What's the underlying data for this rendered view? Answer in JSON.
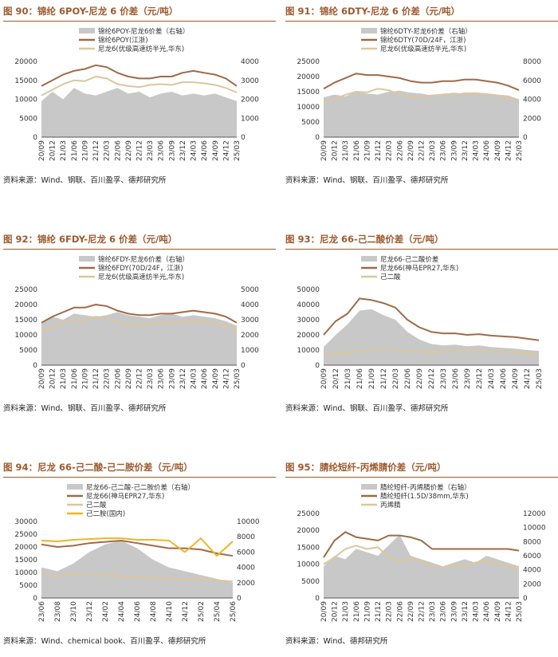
{
  "colors": {
    "title": "#9c5a2e",
    "area": "#c8c8c8",
    "line1": "#9e6b47",
    "line2": "#dcc79b",
    "line3": "#f0b428",
    "axis": "#555555"
  },
  "chart_data": [
    {
      "id": "c90",
      "type": "area+line",
      "title": "图 90：锦纶 6POY-尼龙 6 价差（元/吨）",
      "source": "资料来源：Wind、钢联、百川盈孚、德邦研究所",
      "categories": [
        "20/09",
        "20/12",
        "21/03",
        "21/06",
        "21/09",
        "21/12",
        "22/03",
        "22/06",
        "22/09",
        "22/12",
        "23/03",
        "23/06",
        "23/09",
        "23/12",
        "24/03",
        "24/06",
        "24/09",
        "24/12",
        "25/03"
      ],
      "ylim": [
        0,
        20000
      ],
      "yticks": [
        0,
        5000,
        10000,
        15000,
        20000
      ],
      "y2lim": [
        0,
        4000
      ],
      "y2ticks": [
        0,
        1000,
        2000,
        3000,
        4000
      ],
      "series": [
        {
          "name": "锦纶6POY-尼龙6价差（右轴）",
          "kind": "area",
          "axis": "right",
          "values": [
            1900,
            2400,
            2000,
            2600,
            2300,
            2200,
            2400,
            2600,
            2300,
            2400,
            2100,
            2300,
            2400,
            2200,
            2300,
            2200,
            2300,
            2100,
            1900
          ]
        },
        {
          "name": "锦纶6POY(江浙)",
          "kind": "line",
          "axis": "left",
          "values": [
            13500,
            15000,
            16500,
            17500,
            18000,
            19000,
            18500,
            17000,
            16000,
            15500,
            15500,
            16000,
            16000,
            17000,
            17500,
            17000,
            16500,
            15500,
            13500
          ]
        },
        {
          "name": "尼龙6(优级高速纺半光,华东)",
          "kind": "line",
          "axis": "left",
          "values": [
            11000,
            12500,
            14000,
            15000,
            14800,
            16000,
            15500,
            14000,
            13500,
            13200,
            13800,
            14000,
            13800,
            14500,
            14500,
            14200,
            13800,
            13000,
            11800
          ]
        }
      ]
    },
    {
      "id": "c91",
      "type": "area+line",
      "title": "图 91：锦纶 6DTY-尼龙 6 价差（元/吨）",
      "source": "资料来源：Wind、钢联、百川盈孚、德邦研究所",
      "categories": [
        "20/09",
        "20/12",
        "21/03",
        "21/06",
        "21/09",
        "21/12",
        "22/03",
        "22/06",
        "22/09",
        "22/12",
        "23/03",
        "23/06",
        "23/09",
        "23/12",
        "24/03",
        "24/06",
        "24/09",
        "24/12",
        "25/03"
      ],
      "ylim": [
        0,
        25000
      ],
      "yticks": [
        0,
        5000,
        10000,
        15000,
        20000,
        25000
      ],
      "y2lim": [
        0,
        8000
      ],
      "y2ticks": [
        0,
        2000,
        4000,
        6000,
        8000
      ],
      "series": [
        {
          "name": "锦纶6DTY-尼龙6价差（右轴）",
          "kind": "area",
          "axis": "right",
          "values": [
            4200,
            4500,
            4300,
            4800,
            4600,
            4500,
            4800,
            4900,
            4700,
            4600,
            4400,
            4600,
            4700,
            4600,
            4700,
            4600,
            4500,
            4400,
            4000
          ]
        },
        {
          "name": "锦纶6DTY(70D/24F，江浙)",
          "kind": "line",
          "axis": "left",
          "values": [
            16000,
            18000,
            19500,
            21000,
            20500,
            20500,
            20000,
            19500,
            18500,
            18000,
            18000,
            18500,
            18500,
            19000,
            19000,
            18500,
            18000,
            17000,
            15500
          ]
        },
        {
          "name": "尼龙6(优级高速纺半光,华东)",
          "kind": "line",
          "axis": "left",
          "values": [
            11500,
            12500,
            14000,
            15000,
            14800,
            16000,
            15500,
            14000,
            13500,
            13200,
            13800,
            14000,
            13800,
            14500,
            14500,
            14200,
            13800,
            13000,
            11800
          ]
        }
      ]
    },
    {
      "id": "c92",
      "type": "area+line",
      "title": "图 92：锦纶 6FDY-尼龙 6 价差（元/吨）",
      "source": "资料来源：Wind、钢联、百川盈孚、德邦研究所",
      "categories": [
        "20/09",
        "20/12",
        "21/03",
        "21/06",
        "21/09",
        "21/12",
        "22/03",
        "22/06",
        "22/09",
        "22/12",
        "23/03",
        "23/06",
        "23/09",
        "23/12",
        "24/03",
        "24/06",
        "24/09",
        "24/12",
        "25/03"
      ],
      "ylim": [
        0,
        25000
      ],
      "yticks": [
        0,
        5000,
        10000,
        15000,
        20000,
        25000
      ],
      "y2lim": [
        0,
        5000
      ],
      "y2ticks": [
        0,
        1000,
        2000,
        3000,
        4000,
        5000
      ],
      "series": [
        {
          "name": "锦纶6FDY-尼龙6价差（右轴）",
          "kind": "area",
          "axis": "right",
          "values": [
            2800,
            3200,
            3000,
            3400,
            3300,
            3200,
            3300,
            3500,
            3300,
            3200,
            3100,
            3300,
            3400,
            3200,
            3300,
            3200,
            3100,
            2900,
            2600
          ]
        },
        {
          "name": "锦纶6FDY(70D/24F，江浙)",
          "kind": "line",
          "axis": "left",
          "values": [
            14000,
            16000,
            17500,
            19000,
            19000,
            20000,
            19500,
            18000,
            17000,
            16500,
            16500,
            17000,
            17000,
            17500,
            18000,
            17500,
            17000,
            16000,
            14000
          ]
        },
        {
          "name": "尼龙6(优级高速纺半光,华东)",
          "kind": "line",
          "axis": "left",
          "values": [
            11000,
            12500,
            14000,
            15000,
            14800,
            16000,
            15500,
            14000,
            13500,
            13200,
            13800,
            14000,
            13800,
            14500,
            14500,
            14200,
            13800,
            13000,
            11800
          ]
        }
      ]
    },
    {
      "id": "c93",
      "type": "area+line",
      "title": "图 93：尼龙 66-己二酸价差（元/吨）",
      "source": "资料来源：Wind、钢联、百川盈孚、德邦研究所",
      "categories": [
        "20/09",
        "20/12",
        "21/03",
        "21/06",
        "21/09",
        "21/12",
        "22/03",
        "22/06",
        "22/09",
        "22/12",
        "23/03",
        "23/06",
        "23/09",
        "23/12",
        "24/03",
        "24/06",
        "24/09",
        "24/12",
        "25/03"
      ],
      "ylim": [
        0,
        50000
      ],
      "yticks": [
        0,
        10000,
        20000,
        30000,
        40000,
        50000
      ],
      "series": [
        {
          "name": "尼龙66-己二酸价差",
          "kind": "area",
          "axis": "left",
          "values": [
            12000,
            20000,
            27000,
            36000,
            37000,
            33000,
            30000,
            22000,
            17000,
            14000,
            13000,
            13500,
            12500,
            13000,
            12000,
            11500,
            11000,
            10000,
            9500
          ]
        },
        {
          "name": "尼龙66(神马EPR27,华东)",
          "kind": "line",
          "axis": "left",
          "values": [
            20000,
            29000,
            34000,
            44000,
            43000,
            41000,
            38000,
            30000,
            25000,
            22000,
            21000,
            21000,
            20000,
            20500,
            19500,
            19000,
            18500,
            17500,
            16500
          ]
        },
        {
          "name": "己二酸",
          "kind": "line",
          "axis": "left",
          "values": [
            7500,
            8500,
            8000,
            9500,
            9000,
            11000,
            10000,
            9000,
            9000,
            8500,
            9000,
            9500,
            9000,
            9500,
            9000,
            9000,
            8500,
            8000,
            7500
          ]
        }
      ]
    },
    {
      "id": "c94",
      "type": "area+line",
      "title": "图 94：尼龙 66-己二酸-己二胺价差（元/吨）",
      "source": "资料来源：Wind、chemical book、百川盈孚、德邦研究所",
      "categories": [
        "23/06",
        "23/08",
        "23/10",
        "23/12",
        "24/02",
        "24/04",
        "24/06",
        "24/08",
        "24/10",
        "24/12",
        "25/02",
        "25/04",
        "25/06"
      ],
      "ylim": [
        0,
        30000
      ],
      "yticks": [
        0,
        5000,
        10000,
        15000,
        20000,
        25000,
        30000
      ],
      "y2lim": [
        0,
        10000
      ],
      "y2ticks": [
        0,
        2000,
        4000,
        6000,
        8000,
        10000
      ],
      "series": [
        {
          "name": "尼龙66-己二酸-己二胺价差（右轴）",
          "kind": "area",
          "axis": "right",
          "values": [
            4000,
            3500,
            4500,
            6000,
            7000,
            7500,
            6500,
            5000,
            4000,
            3500,
            3000,
            2500,
            2000
          ]
        },
        {
          "name": "尼龙66(神马EPR27,华东)",
          "kind": "line",
          "axis": "left",
          "values": [
            21000,
            20000,
            20500,
            21500,
            22000,
            22500,
            21500,
            20500,
            19500,
            19500,
            19000,
            17500,
            16500
          ]
        },
        {
          "name": "己二酸",
          "kind": "line",
          "axis": "left",
          "values": [
            9000,
            8500,
            9500,
            9500,
            9000,
            8500,
            8000,
            8000,
            7500,
            7500,
            7500,
            7000,
            6500
          ]
        },
        {
          "name": "己二胺(国内)",
          "kind": "line",
          "axis": "right",
          "values": [
            7500,
            7400,
            7600,
            7700,
            7800,
            7800,
            7600,
            7600,
            7500,
            6000,
            7800,
            5500,
            7400
          ]
        }
      ]
    },
    {
      "id": "c95",
      "type": "area+line",
      "title": "图 95：腈纶短纤-丙烯腈价差（元/吨）",
      "source": "资料来源：Wind、德邦研究所",
      "categories": [
        "20/09",
        "20/12",
        "21/03",
        "21/06",
        "21/09",
        "21/12",
        "22/03",
        "22/06",
        "22/09",
        "22/12",
        "23/03",
        "23/06",
        "23/09",
        "23/12",
        "24/03",
        "24/06",
        "24/09",
        "24/12",
        "25/03"
      ],
      "ylim": [
        0,
        25000
      ],
      "yticks": [
        0,
        5000,
        10000,
        15000,
        20000,
        25000
      ],
      "y2lim": [
        0,
        12000
      ],
      "y2ticks": [
        0,
        2000,
        4000,
        6000,
        8000,
        10000,
        12000
      ],
      "series": [
        {
          "name": "腈纶短纤-丙烯腈价差（右轴）",
          "kind": "area",
          "axis": "right",
          "values": [
            4500,
            6000,
            5500,
            7000,
            6500,
            6000,
            7500,
            9000,
            6000,
            5500,
            5000,
            4500,
            5000,
            5500,
            5000,
            6000,
            5500,
            5000,
            4500
          ]
        },
        {
          "name": "腈纶短纤(1.5D/38mm,华东)",
          "kind": "line",
          "axis": "left",
          "values": [
            12000,
            17000,
            19500,
            18000,
            17500,
            17000,
            18500,
            18500,
            18000,
            17000,
            14500,
            14500,
            14500,
            14500,
            14500,
            14500,
            14500,
            14500,
            14000
          ]
        },
        {
          "name": "丙烯腈",
          "kind": "line",
          "axis": "left",
          "values": [
            10000,
            12000,
            14500,
            15500,
            14500,
            15000,
            12000,
            11000,
            11500,
            11000,
            9500,
            9000,
            10000,
            9500,
            10500,
            11000,
            10000,
            9500,
            8500
          ]
        }
      ]
    }
  ]
}
